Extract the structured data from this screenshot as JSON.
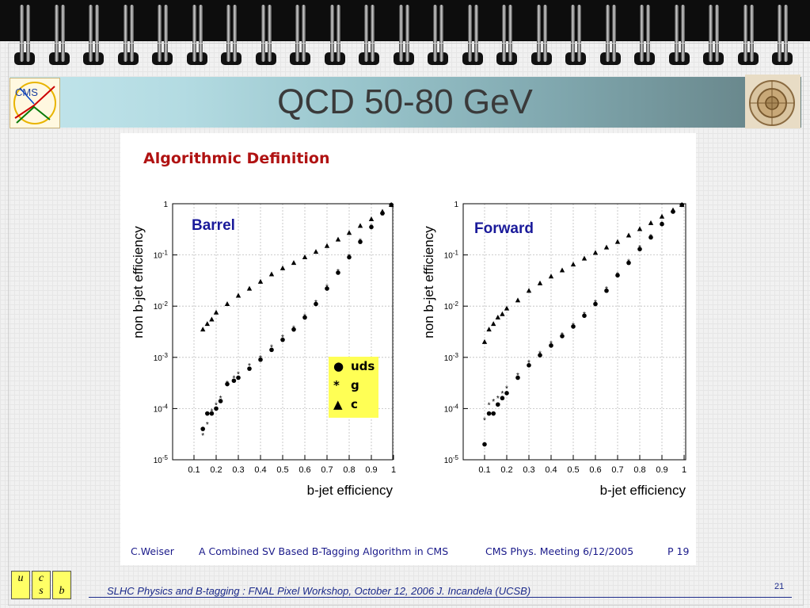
{
  "title": "QCD 50-80 GeV",
  "slide_heading": "Algorithmic Definition",
  "footer_inner": {
    "author": "C.Weiser",
    "talk": "A Combined SV Based B-Tagging Algorithm in CMS",
    "meeting": "CMS Phys. Meeting 6/12/2005",
    "page": "P 19"
  },
  "footer": {
    "text": "SLHC Physics and B-tagging : FNAL Pixel Workshop, October 12, 2006   J. Incandela (UCSB)",
    "page_number": "21"
  },
  "logos": {
    "cms": "CMS"
  },
  "quark_boxes": [
    {
      "top": "u",
      "bottom": ""
    },
    {
      "top": "c",
      "bottom": "s"
    },
    {
      "top": "",
      "bottom": "b"
    }
  ],
  "legend": [
    {
      "marker": "●",
      "label": "uds"
    },
    {
      "marker": "*",
      "label": "g"
    },
    {
      "marker": "▲",
      "label": "c"
    }
  ],
  "colors": {
    "heading": "#b01212",
    "footer_text": "#1b2a8a",
    "legend_bg": "#ffff55",
    "panel_label": "#1a1a9a"
  },
  "chart_data": [
    {
      "type": "scatter",
      "panel_label": "Barrel",
      "xlabel": "b-jet efficiency",
      "ylabel": "non b-jet efficiency",
      "xlim": [
        0.05,
        1.0
      ],
      "ylim": [
        1e-05,
        1
      ],
      "y_scale": "log",
      "grid": true,
      "xticks": [
        "0.1",
        "0.2",
        "0.3",
        "0.4",
        "0.5",
        "0.6",
        "0.7",
        "0.8",
        "0.9",
        "1"
      ],
      "yticks": [
        "1",
        "10^-1",
        "10^-2",
        "10^-3",
        "10^-4",
        "10^-5"
      ],
      "series": [
        {
          "name": "uds",
          "marker": "circle",
          "x": [
            0.14,
            0.16,
            0.18,
            0.2,
            0.22,
            0.25,
            0.28,
            0.3,
            0.35,
            0.4,
            0.45,
            0.5,
            0.55,
            0.6,
            0.65,
            0.7,
            0.75,
            0.8,
            0.85,
            0.9,
            0.95,
            0.99
          ],
          "y": [
            4e-05,
            8e-05,
            8e-05,
            0.0001,
            0.00014,
            0.0003,
            0.00035,
            0.0004,
            0.0006,
            0.0009,
            0.0014,
            0.0022,
            0.0035,
            0.006,
            0.011,
            0.022,
            0.045,
            0.09,
            0.18,
            0.35,
            0.65,
            0.95
          ]
        },
        {
          "name": "g",
          "marker": "star",
          "x": [
            0.14,
            0.16,
            0.18,
            0.2,
            0.22,
            0.25,
            0.28,
            0.3,
            0.35,
            0.4,
            0.45,
            0.5,
            0.55,
            0.6,
            0.65,
            0.7,
            0.75,
            0.8,
            0.85,
            0.9,
            0.95,
            0.99
          ],
          "y": [
            3e-05,
            5e-05,
            9e-05,
            0.00012,
            0.00016,
            0.00032,
            0.0004,
            0.00048,
            0.0007,
            0.001,
            0.0016,
            0.0025,
            0.0038,
            0.0065,
            0.012,
            0.024,
            0.048,
            0.095,
            0.19,
            0.36,
            0.66,
            0.95
          ]
        },
        {
          "name": "c",
          "marker": "triangle",
          "x": [
            0.14,
            0.16,
            0.18,
            0.2,
            0.25,
            0.3,
            0.35,
            0.4,
            0.45,
            0.5,
            0.55,
            0.6,
            0.65,
            0.7,
            0.75,
            0.8,
            0.85,
            0.9,
            0.95,
            0.99
          ],
          "y": [
            0.0035,
            0.0045,
            0.0055,
            0.0075,
            0.011,
            0.016,
            0.022,
            0.03,
            0.042,
            0.055,
            0.07,
            0.09,
            0.115,
            0.15,
            0.2,
            0.27,
            0.37,
            0.5,
            0.7,
            0.95
          ]
        }
      ]
    },
    {
      "type": "scatter",
      "panel_label": "Forward",
      "xlabel": "b-jet efficiency",
      "ylabel": "non b-jet efficiency",
      "xlim": [
        0.05,
        1.0
      ],
      "ylim": [
        1e-05,
        1
      ],
      "y_scale": "log",
      "grid": true,
      "xticks": [
        "0.1",
        "0.2",
        "0.3",
        "0.4",
        "0.5",
        "0.6",
        "0.7",
        "0.8",
        "0.9",
        "1"
      ],
      "yticks": [
        "1",
        "10^-1",
        "10^-2",
        "10^-3",
        "10^-4",
        "10^-5"
      ],
      "series": [
        {
          "name": "uds",
          "marker": "circle",
          "x": [
            0.1,
            0.12,
            0.14,
            0.16,
            0.18,
            0.2,
            0.25,
            0.3,
            0.35,
            0.4,
            0.45,
            0.5,
            0.55,
            0.6,
            0.65,
            0.7,
            0.75,
            0.8,
            0.85,
            0.9,
            0.95,
            0.99
          ],
          "y": [
            2e-05,
            8e-05,
            8e-05,
            0.00012,
            0.00016,
            0.0002,
            0.0004,
            0.0007,
            0.0011,
            0.0017,
            0.0026,
            0.004,
            0.0065,
            0.011,
            0.02,
            0.04,
            0.07,
            0.13,
            0.22,
            0.4,
            0.7,
            0.95
          ]
        },
        {
          "name": "g",
          "marker": "star",
          "x": [
            0.1,
            0.12,
            0.14,
            0.16,
            0.18,
            0.2,
            0.25,
            0.3,
            0.35,
            0.4,
            0.45,
            0.5,
            0.55,
            0.6,
            0.65,
            0.7,
            0.75,
            0.8,
            0.85,
            0.9,
            0.95,
            0.99
          ],
          "y": [
            6e-05,
            0.00012,
            0.00014,
            0.00016,
            0.0002,
            0.00025,
            0.00045,
            0.0008,
            0.0012,
            0.0019,
            0.0028,
            0.0043,
            0.007,
            0.012,
            0.022,
            0.042,
            0.075,
            0.14,
            0.23,
            0.41,
            0.7,
            0.95
          ]
        },
        {
          "name": "c",
          "marker": "triangle",
          "x": [
            0.1,
            0.12,
            0.14,
            0.16,
            0.18,
            0.2,
            0.25,
            0.3,
            0.35,
            0.4,
            0.45,
            0.5,
            0.55,
            0.6,
            0.65,
            0.7,
            0.75,
            0.8,
            0.85,
            0.9,
            0.95,
            0.99
          ],
          "y": [
            0.002,
            0.0035,
            0.0045,
            0.006,
            0.007,
            0.009,
            0.013,
            0.02,
            0.028,
            0.038,
            0.05,
            0.065,
            0.085,
            0.11,
            0.14,
            0.18,
            0.24,
            0.32,
            0.42,
            0.56,
            0.75,
            0.95
          ]
        }
      ]
    }
  ]
}
